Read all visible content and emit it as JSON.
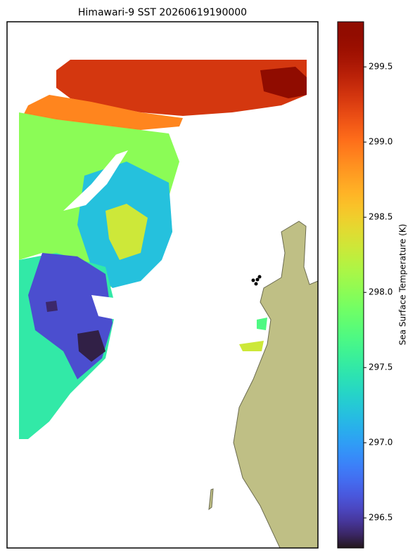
{
  "title": "Himawari-9 SST 20260619190000",
  "colorbar": {
    "label": "Sea Surface Temperature (K)",
    "cmap": "turbo",
    "lim": [
      296.3,
      299.8
    ],
    "ticks": [
      296.5,
      {
        "value": 297,
        "label": "297.0"
      },
      297.5,
      {
        "value": 298,
        "label": "298.0"
      },
      298.5,
      {
        "value": 299,
        "label": "299.0"
      },
      299.5
    ]
  },
  "sst_patches": [
    299.3,
    299.75,
    298.9,
    298.0,
    297.2,
    298.3,
    297.5,
    296.6,
    296.35,
    296.4,
    297.7,
    298.3
  ]
}
